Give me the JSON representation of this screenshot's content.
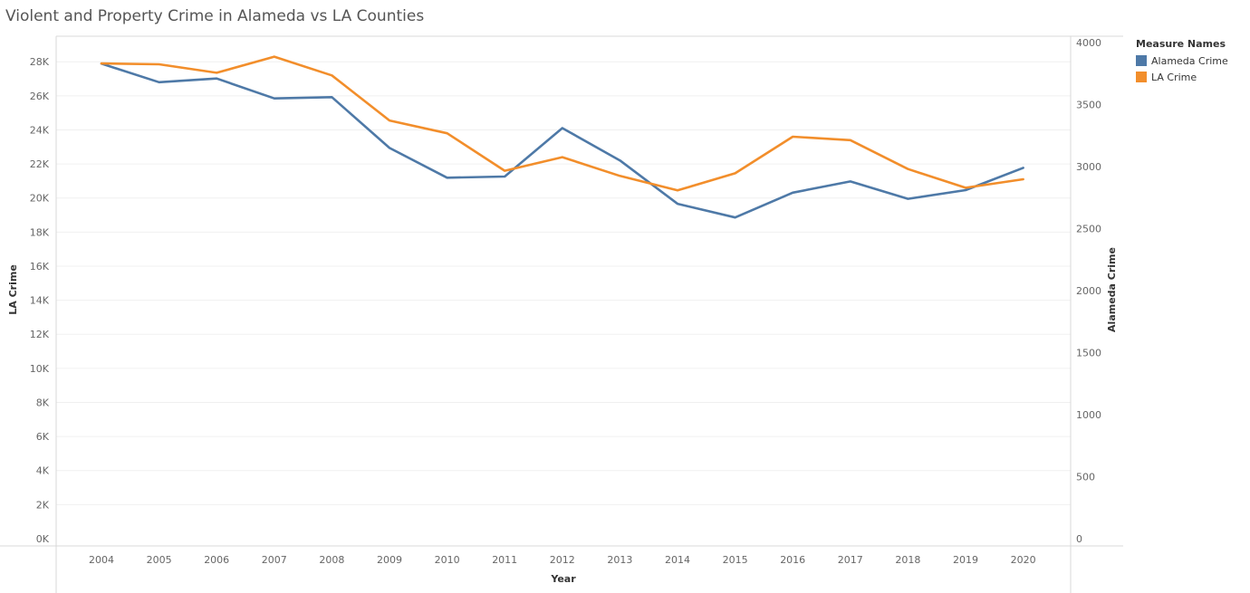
{
  "page": {
    "title": "Violent and Property Crime in Alameda vs LA Counties"
  },
  "legend": {
    "title": "Measure Names",
    "items": [
      {
        "label": "Alameda Crime",
        "color": "#4e79a7"
      },
      {
        "label": "LA Crime",
        "color": "#f28e2b"
      }
    ]
  },
  "chart_data": {
    "type": "line",
    "title": "Violent and Property Crime in Alameda vs LA Counties",
    "xlabel": "Year",
    "x": [
      "2004",
      "2005",
      "2006",
      "2007",
      "2008",
      "2009",
      "2010",
      "2011",
      "2012",
      "2013",
      "2014",
      "2015",
      "2016",
      "2017",
      "2018",
      "2019",
      "2020"
    ],
    "left_axis": {
      "label": "LA Crime",
      "ylim": [
        0,
        29500
      ],
      "ticks": [
        0,
        2000,
        4000,
        6000,
        8000,
        10000,
        12000,
        14000,
        16000,
        18000,
        20000,
        22000,
        24000,
        26000,
        28000
      ],
      "tick_labels": [
        "0K",
        "2K",
        "4K",
        "6K",
        "8K",
        "10K",
        "12K",
        "14K",
        "16K",
        "18K",
        "20K",
        "22K",
        "24K",
        "26K",
        "28K"
      ]
    },
    "right_axis": {
      "label": "Alameda Crime",
      "ylim": [
        0,
        4000
      ],
      "ticks": [
        0,
        500,
        1000,
        1500,
        2000,
        2500,
        3000,
        3500,
        4000
      ],
      "tick_labels": [
        "0",
        "500",
        "1000",
        "1500",
        "2000",
        "2500",
        "3000",
        "3500",
        "4000"
      ]
    },
    "series": [
      {
        "name": "Alameda Crime",
        "axis": "right",
        "color": "#4e79a7",
        "values": [
          3830,
          3680,
          3710,
          3550,
          3560,
          3150,
          2910,
          2920,
          3310,
          3050,
          2700,
          2590,
          2790,
          2880,
          2740,
          2810,
          2990
        ]
      },
      {
        "name": "LA Crime",
        "axis": "left",
        "color": "#f28e2b",
        "values": [
          27900,
          27850,
          27350,
          28300,
          27200,
          24550,
          23800,
          21600,
          22400,
          21300,
          20450,
          21450,
          23600,
          23400,
          21700,
          20600,
          21100
        ]
      }
    ],
    "grid": true,
    "legend_position": "right"
  }
}
